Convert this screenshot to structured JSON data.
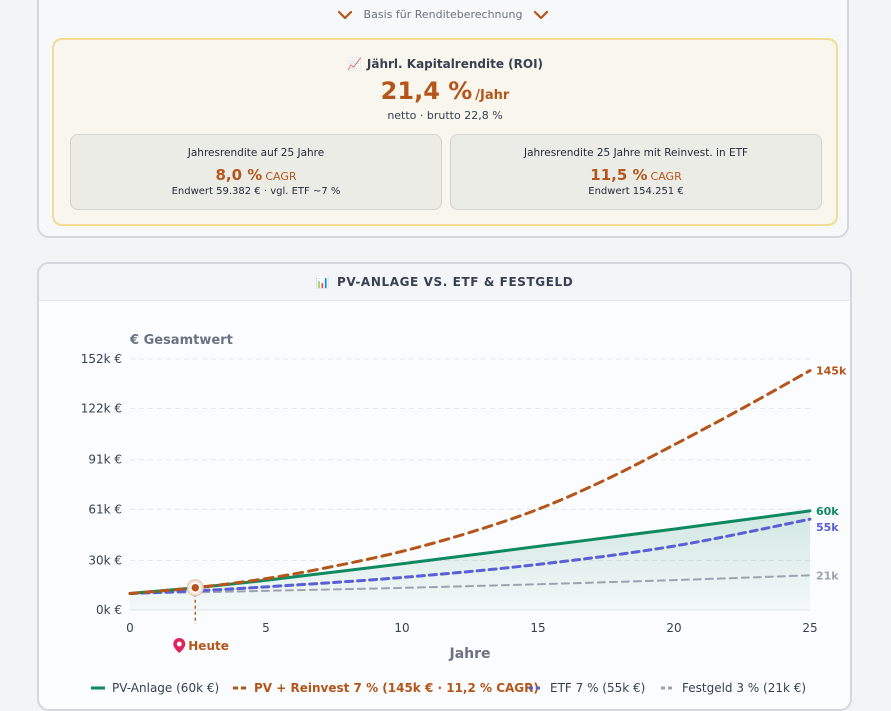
{
  "top": {
    "basis_label": "Basis für Renditeberechnung",
    "roi_icon": "chart-increasing-icon",
    "roi_title": "Jährl. Kapitalrendite (ROI)",
    "roi_value": "21,4 %",
    "roi_unit": "/Jahr",
    "roi_sub": "netto · brutto 22,8 %",
    "box1": {
      "title": "Jahresrendite auf 25 Jahre",
      "value": "8,0 %",
      "unit": "CAGR",
      "endwert": "Endwert 59.382 € · vgl. ETF ~7 %"
    },
    "box2": {
      "title": "Jahresrendite 25 Jahre mit Reinvest. in ETF",
      "value": "11,5 %",
      "unit": "CAGR",
      "endwert": "Endwert 154.251 €"
    }
  },
  "chart_card": {
    "icon": "bar-chart-icon",
    "title": "PV-ANLAGE VS. ETF & FESTGELD"
  },
  "chart_data": {
    "type": "line",
    "ylabel": "€ Gesamtwert",
    "xlabel": "Jahre",
    "xlim": [
      0,
      25
    ],
    "ylim": [
      0,
      152000
    ],
    "xticks": [
      0,
      5,
      10,
      15,
      20,
      25
    ],
    "yticks": [
      {
        "value": 0,
        "label": "0k €"
      },
      {
        "value": 30000,
        "label": "30k €"
      },
      {
        "value": 61000,
        "label": "61k €"
      },
      {
        "value": 91000,
        "label": "91k €"
      },
      {
        "value": 122000,
        "label": "122k €"
      },
      {
        "value": 152000,
        "label": "152k €"
      }
    ],
    "grid": true,
    "legend_position": "bottom",
    "marker": {
      "x": 2.4,
      "y": 13500,
      "label": "Heute",
      "icon": "pin-icon"
    },
    "series": [
      {
        "name": "PV-Anlage (60k €)",
        "color": "#0f8a5f",
        "style": "solid",
        "fill": true,
        "end_label": "60k",
        "x": [
          0,
          2.4,
          5,
          10,
          15,
          20,
          25
        ],
        "y": [
          10000,
          13500,
          18000,
          28000,
          38500,
          49000,
          60000
        ]
      },
      {
        "name": "PV + Reinvest 7 % (145k € · 11,2 % CAGR)",
        "color": "#b4561b",
        "style": "dashed",
        "fill": false,
        "end_label": "145k",
        "x": [
          0,
          2.4,
          5,
          7.5,
          10,
          12.5,
          15,
          17.5,
          20,
          22.5,
          25
        ],
        "y": [
          10000,
          13500,
          19000,
          26500,
          35500,
          47000,
          61000,
          79000,
          100000,
          122000,
          145000
        ]
      },
      {
        "name": "ETF 7 % (55k €)",
        "color": "#5b5fd6",
        "style": "dashed",
        "fill": false,
        "end_label": "55k",
        "x": [
          0,
          2.4,
          5,
          10,
          15,
          20,
          25
        ],
        "y": [
          10000,
          11600,
          14000,
          19700,
          27600,
          38700,
          55000
        ]
      },
      {
        "name": "Festgeld 3 % (21k €)",
        "color": "#9ca3af",
        "style": "dashed",
        "fill": false,
        "end_label": "21k",
        "x": [
          0,
          2.4,
          5,
          10,
          15,
          20,
          25
        ],
        "y": [
          10000,
          10700,
          11600,
          13400,
          15600,
          18100,
          21000
        ]
      }
    ]
  },
  "colors": {
    "accent": "#b4561b",
    "pv": "#0f8a5f",
    "etf": "#5b5fd6",
    "festgeld": "#9ca3af"
  }
}
